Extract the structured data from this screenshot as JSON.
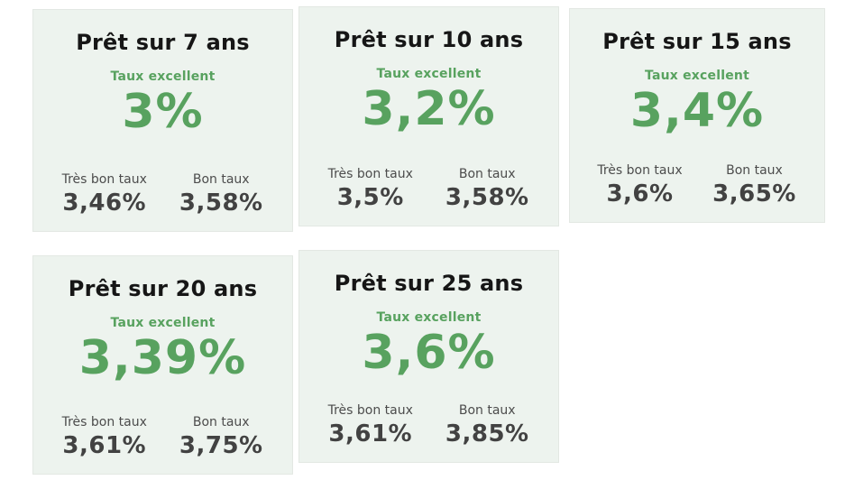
{
  "colors": {
    "card_background": "#edf3ee",
    "card_border": "#e3e8e3",
    "accent_green": "#58a25f",
    "title_color": "#161616",
    "label_color": "#4c4c4c",
    "value_color": "#424242",
    "page_background": "#ffffff"
  },
  "cards": [
    {
      "title": "Prêt sur 7 ans",
      "excellent_label": "Taux excellent",
      "excellent_rate": "3%",
      "very_good_label": "Très bon taux",
      "very_good_rate": "3,46%",
      "good_label": "Bon taux",
      "good_rate": "3,58%"
    },
    {
      "title": "Prêt sur 10 ans",
      "excellent_label": "Taux excellent",
      "excellent_rate": "3,2%",
      "very_good_label": "Très bon taux",
      "very_good_rate": "3,5%",
      "good_label": "Bon taux",
      "good_rate": "3,58%"
    },
    {
      "title": "Prêt sur 15 ans",
      "excellent_label": "Taux excellent",
      "excellent_rate": "3,4%",
      "very_good_label": "Très bon taux",
      "very_good_rate": "3,6%",
      "good_label": "Bon taux",
      "good_rate": "3,65%"
    },
    {
      "title": "Prêt sur 20 ans",
      "excellent_label": "Taux excellent",
      "excellent_rate": "3,39%",
      "very_good_label": "Très bon taux",
      "very_good_rate": "3,61%",
      "good_label": "Bon taux",
      "good_rate": "3,75%"
    },
    {
      "title": "Prêt sur 25 ans",
      "excellent_label": "Taux excellent",
      "excellent_rate": "3,6%",
      "very_good_label": "Très bon taux",
      "very_good_rate": "3,61%",
      "good_label": "Bon taux",
      "good_rate": "3,85%"
    }
  ]
}
